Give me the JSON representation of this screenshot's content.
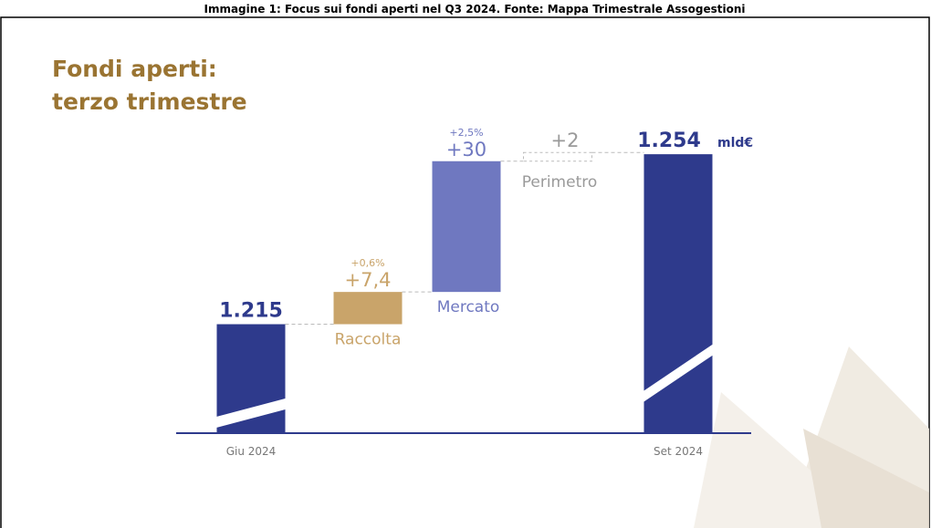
{
  "caption": "Immagine 1: Focus sui fondi aperti nel Q3 2024. Fonte: Mappa Trimestrale Assogestioni",
  "chart_data": {
    "type": "waterfall",
    "title": [
      "Fondi aperti:",
      "terzo trimestre"
    ],
    "unit": "mld€",
    "categories": [
      "Giu 2024",
      "Raccolta",
      "Mercato",
      "Perimetro",
      "Set 2024"
    ],
    "values": [
      1215,
      7.4,
      30,
      2,
      1254
    ],
    "value_labels": [
      "1.215",
      "+7,4",
      "+30",
      "+2",
      "1.254"
    ],
    "pct_labels": [
      null,
      "+0,6%",
      "+2,5%",
      null,
      null
    ],
    "is_total": [
      true,
      false,
      false,
      false,
      true
    ],
    "colors": [
      "#2e3a8c",
      "#c9a46a",
      "#6f78c0",
      "#9a9a9a",
      "#2e3a8c"
    ],
    "ylim": [
      1190,
      1258
    ]
  }
}
